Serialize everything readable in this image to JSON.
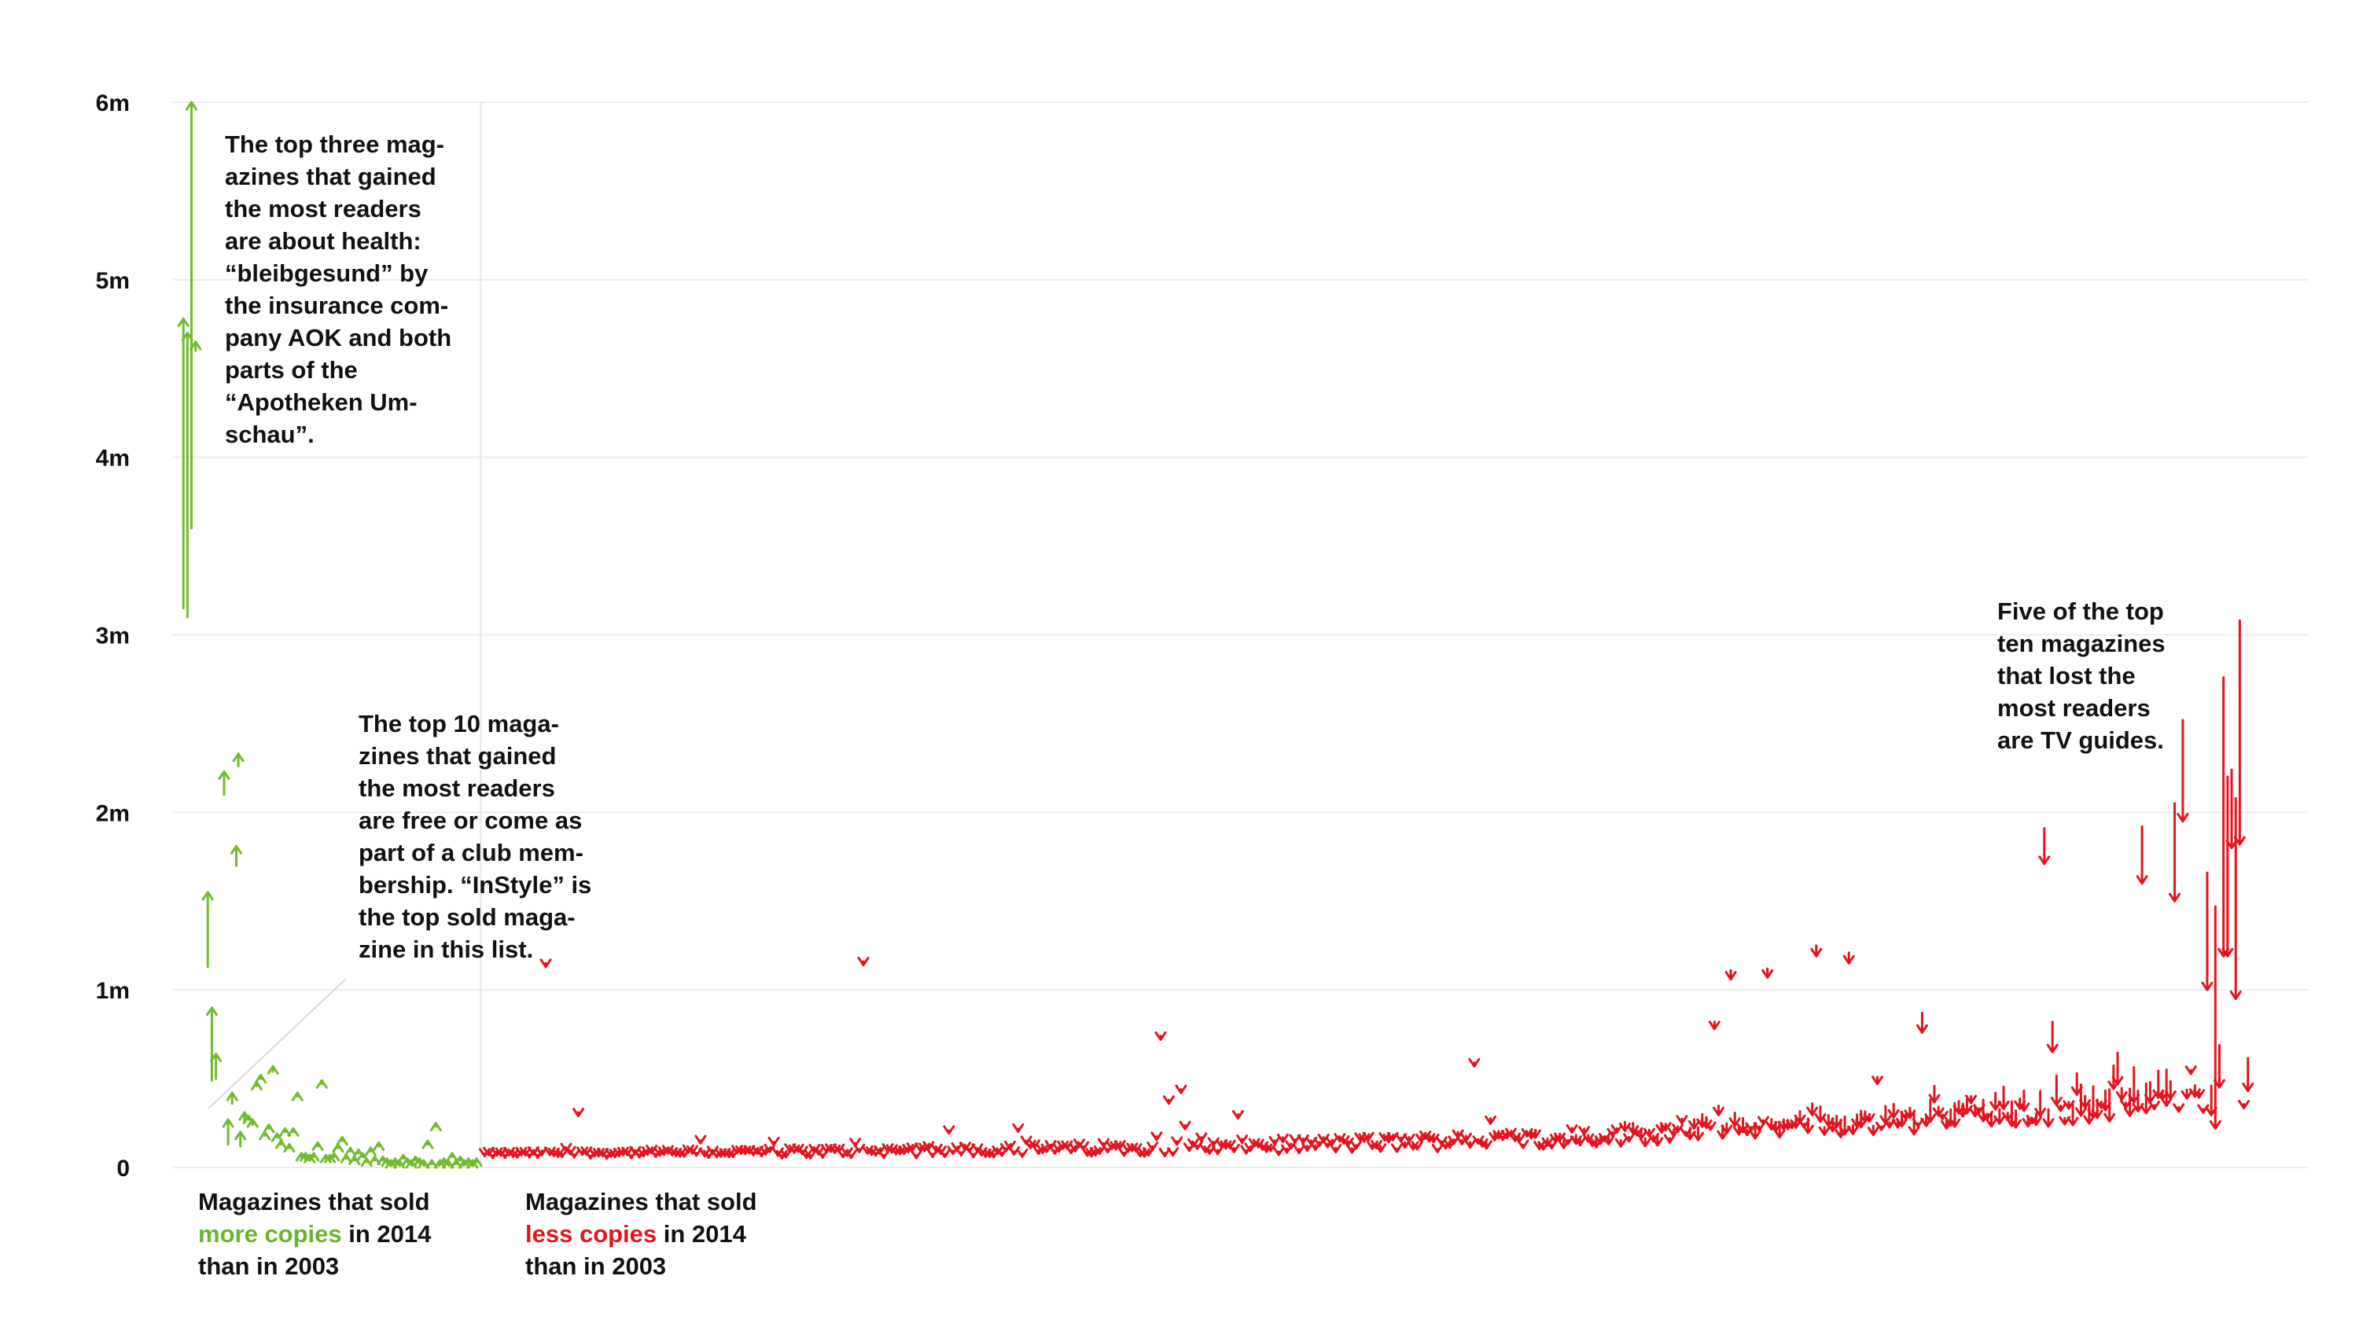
{
  "colors": {
    "gain": "#72bb2f",
    "loss": "#e3141e",
    "grid": "#ececec",
    "divider": "#e6e6e6",
    "leader": "#d8d8d8"
  },
  "annotations": {
    "health": "The top three mag-\nazines that gained\nthe most readers\nare about health:\n“bleibgesund” by\nthe insurance com-\npany AOK and both\nparts of the\n“Apotheken Um-\nschau”.",
    "free": "The top 10 maga-\nzines that gained\nthe most readers\nare free or come as\npart of a club mem-\nbership. “InStyle” is\nthe top sold maga-\nzine in this list.",
    "tv": "Five of the top\nten magazines\nthat lost the\nmost readers\nare TV guides.",
    "gain_label": {
      "line1": "Magazines that sold",
      "highlight": "more copies",
      "line2_rest": " in 2014",
      "line3": "than in 2003"
    },
    "loss_label": {
      "line1": "Magazines that sold",
      "highlight": "less copies",
      "line2_rest": " in 2014",
      "line3": "than in 2003"
    }
  },
  "chart_data": {
    "type": "arrow",
    "x_unit": "magazine rank (sorted by change)",
    "y_unit": "copies",
    "yticks": [
      0,
      1000000,
      2000000,
      3000000,
      4000000,
      5000000,
      6000000
    ],
    "ytick_labels": [
      "0",
      "1m",
      "2m",
      "3m",
      "4m",
      "5m",
      "6m"
    ],
    "ylim": [
      0,
      6000000
    ],
    "x_divider": 74,
    "x_count": 515,
    "gained": [
      {
        "x": 1,
        "from": 3150000,
        "to": 4780000
      },
      {
        "x": 2,
        "from": 3100000,
        "to": 4700000
      },
      {
        "x": 3,
        "from": 3600000,
        "to": 6000000
      },
      {
        "x": 4,
        "from": 4600000,
        "to": 4650000
      },
      {
        "x": 7,
        "from": 1130000,
        "to": 1550000
      },
      {
        "x": 8,
        "from": 490000,
        "to": 900000
      },
      {
        "x": 9,
        "from": 500000,
        "to": 640000
      },
      {
        "x": 11,
        "from": 2100000,
        "to": 2230000
      },
      {
        "x": 12,
        "from": 130000,
        "to": 270000
      },
      {
        "x": 13,
        "from": 360000,
        "to": 420000
      },
      {
        "x": 14,
        "from": 1700000,
        "to": 1810000
      },
      {
        "x": 14.5,
        "from": 2260000,
        "to": 2330000
      },
      {
        "x": 15,
        "from": 120000,
        "to": 200000
      },
      {
        "x": 16,
        "from": 260000,
        "to": 310000
      },
      {
        "x": 17,
        "from": 270000,
        "to": 290000
      },
      {
        "x": 18,
        "from": 240000,
        "to": 270000
      },
      {
        "x": 19,
        "from": 460000,
        "to": 480000
      },
      {
        "x": 20,
        "from": 500000,
        "to": 520000
      },
      {
        "x": 21,
        "from": 180000,
        "to": 200000
      },
      {
        "x": 22,
        "from": 220000,
        "to": 240000
      },
      {
        "x": 23,
        "from": 540000,
        "to": 570000
      },
      {
        "x": 24,
        "from": 170000,
        "to": 190000
      },
      {
        "x": 25,
        "from": 130000,
        "to": 150000
      },
      {
        "x": 26,
        "from": 200000,
        "to": 220000
      },
      {
        "x": 27,
        "from": 110000,
        "to": 130000
      },
      {
        "x": 28,
        "from": 200000,
        "to": 220000
      },
      {
        "x": 29,
        "from": 400000,
        "to": 420000
      },
      {
        "x": 30,
        "from": 60000,
        "to": 80000
      },
      {
        "x": 31,
        "from": 60000,
        "to": 80000
      },
      {
        "x": 32,
        "from": 50000,
        "to": 70000
      },
      {
        "x": 33,
        "from": 60000,
        "to": 80000
      },
      {
        "x": 34,
        "from": 120000,
        "to": 140000
      },
      {
        "x": 35,
        "from": 470000,
        "to": 490000
      },
      {
        "x": 36,
        "from": 50000,
        "to": 70000
      },
      {
        "x": 37,
        "from": 50000,
        "to": 70000
      },
      {
        "x": 38,
        "from": 60000,
        "to": 80000
      },
      {
        "x": 39,
        "from": 110000,
        "to": 130000
      },
      {
        "x": 40,
        "from": 150000,
        "to": 170000
      },
      {
        "x": 41,
        "from": 50000,
        "to": 70000
      },
      {
        "x": 42,
        "from": 90000,
        "to": 110000
      },
      {
        "x": 43,
        "from": 40000,
        "to": 60000
      },
      {
        "x": 44,
        "from": 80000,
        "to": 100000
      },
      {
        "x": 45,
        "from": 60000,
        "to": 80000
      },
      {
        "x": 46,
        "from": 30000,
        "to": 50000
      },
      {
        "x": 47,
        "from": 90000,
        "to": 110000
      },
      {
        "x": 48,
        "from": 40000,
        "to": 60000
      },
      {
        "x": 49,
        "from": 120000,
        "to": 140000
      },
      {
        "x": 50,
        "from": 40000,
        "to": 60000
      },
      {
        "x": 51,
        "from": 30000,
        "to": 50000
      },
      {
        "x": 52,
        "from": 20000,
        "to": 40000
      },
      {
        "x": 53,
        "from": 30000,
        "to": 50000
      },
      {
        "x": 54,
        "from": 20000,
        "to": 40000
      },
      {
        "x": 55,
        "from": 50000,
        "to": 70000
      },
      {
        "x": 56,
        "from": 30000,
        "to": 50000
      },
      {
        "x": 57,
        "from": 20000,
        "to": 40000
      },
      {
        "x": 58,
        "from": 40000,
        "to": 60000
      },
      {
        "x": 59,
        "from": 30000,
        "to": 50000
      },
      {
        "x": 60,
        "from": 20000,
        "to": 40000
      },
      {
        "x": 61,
        "from": 130000,
        "to": 150000
      },
      {
        "x": 62,
        "from": 20000,
        "to": 40000
      },
      {
        "x": 63,
        "from": 230000,
        "to": 250000
      },
      {
        "x": 64,
        "from": 20000,
        "to": 40000
      },
      {
        "x": 65,
        "from": 30000,
        "to": 50000
      },
      {
        "x": 66,
        "from": 20000,
        "to": 40000
      },
      {
        "x": 67,
        "from": 60000,
        "to": 80000
      },
      {
        "x": 68,
        "from": 20000,
        "to": 40000
      },
      {
        "x": 69,
        "from": 40000,
        "to": 60000
      },
      {
        "x": 70,
        "from": 20000,
        "to": 40000
      },
      {
        "x": 71,
        "from": 30000,
        "to": 50000
      },
      {
        "x": 72,
        "from": 20000,
        "to": 40000
      },
      {
        "x": 73,
        "from": 30000,
        "to": 50000
      }
    ],
    "lost_big": [
      {
        "x": 90,
        "from": 1150000,
        "to": 1130000
      },
      {
        "x": 98,
        "from": 310000,
        "to": 290000
      },
      {
        "x": 168,
        "from": 1160000,
        "to": 1140000
      },
      {
        "x": 241,
        "from": 740000,
        "to": 720000
      },
      {
        "x": 243,
        "from": 380000,
        "to": 360000
      },
      {
        "x": 246,
        "from": 440000,
        "to": 420000
      },
      {
        "x": 318,
        "from": 590000,
        "to": 570000
      },
      {
        "x": 377,
        "from": 820000,
        "to": 780000
      },
      {
        "x": 381,
        "from": 1110000,
        "to": 1060000
      },
      {
        "x": 390,
        "from": 1120000,
        "to": 1070000
      },
      {
        "x": 402,
        "from": 1250000,
        "to": 1190000
      },
      {
        "x": 410,
        "from": 1210000,
        "to": 1150000
      },
      {
        "x": 428,
        "from": 870000,
        "to": 760000
      },
      {
        "x": 458,
        "from": 1910000,
        "to": 1710000
      },
      {
        "x": 460,
        "from": 820000,
        "to": 650000
      },
      {
        "x": 482,
        "from": 1920000,
        "to": 1600000
      },
      {
        "x": 490,
        "from": 2050000,
        "to": 1500000
      },
      {
        "x": 492,
        "from": 2520000,
        "to": 1950000
      },
      {
        "x": 498,
        "from": 1660000,
        "to": 1000000
      },
      {
        "x": 500,
        "from": 1470000,
        "to": 220000
      },
      {
        "x": 502,
        "from": 2760000,
        "to": 1190000
      },
      {
        "x": 503,
        "from": 2200000,
        "to": 1190000
      },
      {
        "x": 504,
        "from": 2240000,
        "to": 1800000
      },
      {
        "x": 505,
        "from": 2080000,
        "to": 950000
      },
      {
        "x": 506,
        "from": 3080000,
        "to": 1820000
      }
    ],
    "lost_small_generator_note": ""
  }
}
